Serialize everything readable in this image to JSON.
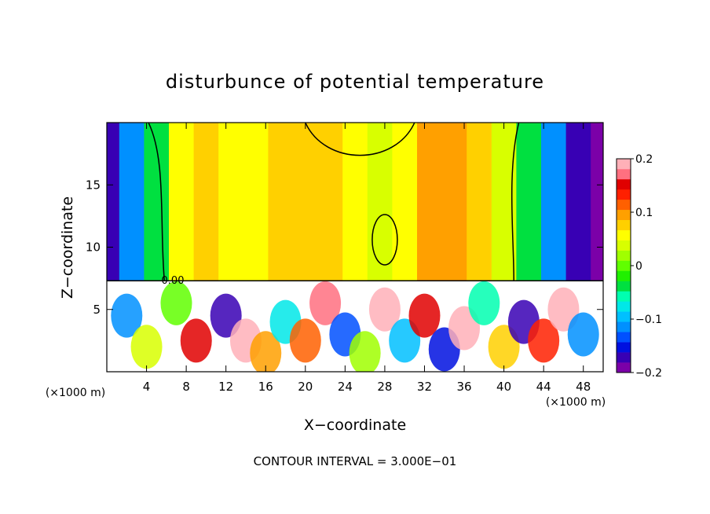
{
  "chart_data": {
    "type": "heatmap",
    "title": "disturbunce of potential temperature",
    "xlabel": "X−coordinate",
    "ylabel": "Z−coordinate",
    "x_unit": "(×1000 m)",
    "x_unit_right": "(×1000 m)",
    "footer": "CONTOUR INTERVAL = 3.000E−01",
    "contour_label": "0.00",
    "xlim": [
      0,
      50
    ],
    "ylim": [
      0,
      20
    ],
    "x_ticks": [
      4,
      8,
      12,
      16,
      20,
      24,
      28,
      32,
      36,
      40,
      44,
      48
    ],
    "x_tick_labels": [
      "4",
      "8",
      "12",
      "16",
      "20",
      "24",
      "28",
      "32",
      "36",
      "40",
      "44",
      "48"
    ],
    "y_ticks": [
      5,
      10,
      15
    ],
    "y_tick_labels": [
      "5",
      "10",
      "15"
    ],
    "colorbar": {
      "min": -0.2,
      "max": 0.2,
      "ticks": [
        0.2,
        0.1,
        0,
        -0.1,
        -0.2
      ],
      "tick_labels": [
        "0.2",
        "0.1",
        "0",
        "−0.1",
        "−0.2"
      ],
      "colors": [
        "#7b00a8",
        "#3800b4",
        "#0010e0",
        "#0050ff",
        "#0090ff",
        "#00c0ff",
        "#00e8e8",
        "#00ffb0",
        "#00e040",
        "#20f000",
        "#60ff00",
        "#a0ff00",
        "#d8ff00",
        "#ffff00",
        "#ffd000",
        "#ffa000",
        "#ff6000",
        "#ff2000",
        "#e00000",
        "#ff7080",
        "#ffb0b8"
      ]
    },
    "interface_height": 7.3,
    "upper_layer": {
      "columns": [
        {
          "x": 0,
          "value": -0.18
        },
        {
          "x": 2.5,
          "value": -0.12
        },
        {
          "x": 5,
          "value": -0.04
        },
        {
          "x": 7.5,
          "value": 0.05
        },
        {
          "x": 10,
          "value": 0.07
        },
        {
          "x": 12.5,
          "value": 0.06
        },
        {
          "x": 15,
          "value": 0.05
        },
        {
          "x": 17.5,
          "value": 0.07
        },
        {
          "x": 20,
          "value": 0.08
        },
        {
          "x": 22.5,
          "value": 0.07
        },
        {
          "x": 25,
          "value": 0.05
        },
        {
          "x": 27.5,
          "value": 0.03
        },
        {
          "x": 30,
          "value": 0.06
        },
        {
          "x": 32.5,
          "value": 0.09
        },
        {
          "x": 35,
          "value": 0.1
        },
        {
          "x": 37.5,
          "value": 0.08
        },
        {
          "x": 40,
          "value": 0.03
        },
        {
          "x": 42.5,
          "value": -0.04
        },
        {
          "x": 45,
          "value": -0.12
        },
        {
          "x": 47.5,
          "value": -0.17
        },
        {
          "x": 50,
          "value": -0.19
        }
      ]
    },
    "lower_layer": {
      "patches": [
        {
          "x": 2,
          "z": 4.5,
          "value": -0.12
        },
        {
          "x": 4,
          "z": 2,
          "value": 0.04
        },
        {
          "x": 7,
          "z": 5.5,
          "value": 0.0
        },
        {
          "x": 9,
          "z": 2.5,
          "value": 0.15
        },
        {
          "x": 12,
          "z": 4.5,
          "value": -0.18
        },
        {
          "x": 14,
          "z": 2.5,
          "value": 0.2
        },
        {
          "x": 16,
          "z": 1.5,
          "value": 0.1
        },
        {
          "x": 18,
          "z": 4,
          "value": -0.08
        },
        {
          "x": 20,
          "z": 2.5,
          "value": 0.12
        },
        {
          "x": 22,
          "z": 5.5,
          "value": 0.18
        },
        {
          "x": 24,
          "z": 3,
          "value": -0.14
        },
        {
          "x": 26,
          "z": 1.5,
          "value": 0.02
        },
        {
          "x": 28,
          "z": 5,
          "value": 0.2
        },
        {
          "x": 30,
          "z": 2.5,
          "value": -0.1
        },
        {
          "x": 32,
          "z": 4.5,
          "value": 0.16
        },
        {
          "x": 34,
          "z": 1.8,
          "value": -0.16
        },
        {
          "x": 36,
          "z": 3.5,
          "value": 0.2
        },
        {
          "x": 38,
          "z": 5.5,
          "value": -0.06
        },
        {
          "x": 40,
          "z": 2,
          "value": 0.08
        },
        {
          "x": 42,
          "z": 4,
          "value": -0.18
        },
        {
          "x": 44,
          "z": 2.5,
          "value": 0.14
        },
        {
          "x": 46,
          "z": 5,
          "value": 0.2
        },
        {
          "x": 48,
          "z": 3,
          "value": -0.12
        }
      ]
    }
  }
}
